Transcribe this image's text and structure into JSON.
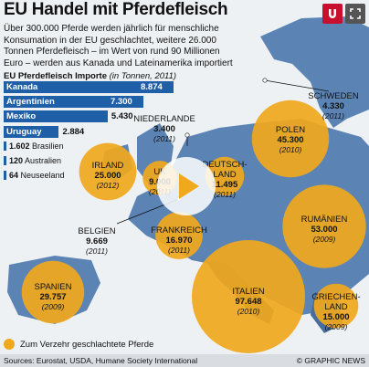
{
  "title": "EU Handel mit Pferdefleisch",
  "intro": "Über 300.000 Pferde werden jährlich für menschliche Konsumation in der EU geschlachtet, weitere 26.000 Tonnen Pferdefleisch – im Wert von rund 90 Millionen Euro – werden aus Kanada und Lateinamerika importiert",
  "chart_data": [
    {
      "type": "bar",
      "title": "EU Pferdefleisch Importe",
      "unit": "(in Tonnen, 2011)",
      "categories": [
        "Kanada",
        "Argentinien",
        "Mexiko",
        "Uruguay",
        "Brasilien",
        "Australien",
        "Neuseeland"
      ],
      "values": [
        8874,
        7300,
        5430,
        2884,
        1602,
        120,
        64
      ],
      "value_labels": [
        "8.874",
        "7.300",
        "5.430",
        "2.884",
        "1.602",
        "120",
        "64"
      ],
      "xlim": [
        0,
        8874
      ],
      "color": "#1e5fa8"
    },
    {
      "type": "bubble-map",
      "legend": "Zum Verzehr geschlachtete Pferde",
      "color": "#f0a81c",
      "countries": [
        {
          "name": "SCHWEDEN",
          "value": 4330,
          "label": "4.330",
          "year": "(2011)",
          "bubble": false
        },
        {
          "name": "NIEDERLANDE",
          "value": 3400,
          "label": "3.400",
          "year": "(2011)",
          "bubble": false
        },
        {
          "name": "POLEN",
          "value": 45300,
          "label": "45.300",
          "year": "(2010)",
          "bubble": true
        },
        {
          "name": "IRLAND",
          "value": 25000,
          "label": "25.000",
          "year": "(2012)",
          "bubble": true
        },
        {
          "name": "UK",
          "value": 9000,
          "label": "9.000",
          "year": "(2011)",
          "bubble": true
        },
        {
          "name": "DEUTSCH-LAND",
          "value": 11495,
          "label": "11.495",
          "year": "(2011)",
          "bubble": true
        },
        {
          "name": "BELGIEN",
          "value": 9669,
          "label": "9.669",
          "year": "(2011)",
          "bubble": false
        },
        {
          "name": "FRANKREICH",
          "value": 16970,
          "label": "16.970",
          "year": "(2011)",
          "bubble": true
        },
        {
          "name": "RUMÄNIEN",
          "value": 53000,
          "label": "53.000",
          "year": "(2009)",
          "bubble": true
        },
        {
          "name": "SPANIEN",
          "value": 29757,
          "label": "29.757",
          "year": "(2009)",
          "bubble": true
        },
        {
          "name": "ITALIEN",
          "value": 97648,
          "label": "97.648",
          "year": "(2010)",
          "bubble": true
        },
        {
          "name": "GRIECHEN-LAND",
          "value": 15000,
          "label": "15.000",
          "year": "(2009)",
          "bubble": true
        }
      ]
    }
  ],
  "footer": {
    "sources": "Sources: Eurostat, USDA, Humane Society International",
    "credit": "© GRAPHIC NEWS"
  },
  "colors": {
    "land": "#5b84b5",
    "land_dark": "#456d9e",
    "sea": "#eef1f4",
    "bubble": "#f0a81c",
    "bar": "#1e5fa8"
  }
}
